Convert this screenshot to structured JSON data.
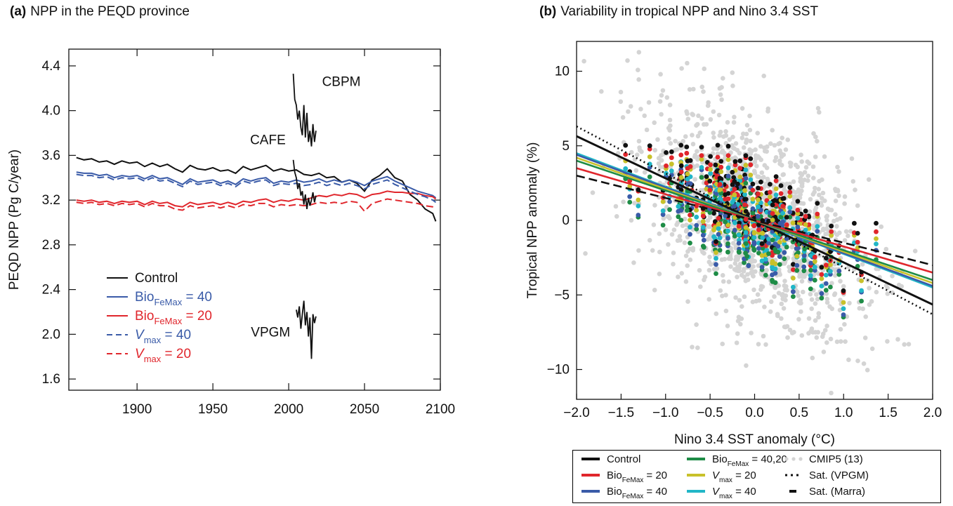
{
  "chart_data": [
    {
      "panel": "(a)",
      "type": "line",
      "title": "NPP in the PEQD province",
      "xlabel": "",
      "ylabel": "PEQD NPP (Pg C/year)",
      "xlim": [
        1855,
        2100
      ],
      "ylim": [
        1.5,
        4.55
      ],
      "xticks": [
        1900,
        1950,
        2000,
        2050,
        2100
      ],
      "yticks": [
        "1.6",
        "2.0",
        "2.4",
        "2.8",
        "3.2",
        "3.6",
        "4.0",
        "4.4"
      ],
      "xtick_labels": [
        "1900",
        "1950",
        "2000",
        "2050",
        "2100"
      ],
      "ytick_labels": [
        "1.6",
        "2.0",
        "2.4",
        "2.8",
        "3.2",
        "3.6",
        "4.0",
        "4.4"
      ],
      "colors": {
        "control": "#111111",
        "bio40": "#3a5ba8",
        "bio20": "#e0262c",
        "obs": "#111111"
      },
      "series": [
        {
          "key": "control",
          "style": "solid",
          "color": "#111111",
          "x": [
            1860,
            1865,
            1870,
            1875,
            1880,
            1885,
            1890,
            1895,
            1900,
            1905,
            1910,
            1915,
            1920,
            1925,
            1930,
            1935,
            1940,
            1945,
            1950,
            1955,
            1960,
            1965,
            1970,
            1975,
            1980,
            1985,
            1990,
            1995,
            2000,
            2005,
            2010,
            2015,
            2020,
            2025,
            2030,
            2035,
            2040,
            2045,
            2050,
            2055,
            2060,
            2065,
            2070,
            2075,
            2080,
            2085,
            2090,
            2095,
            2097
          ],
          "y": [
            3.58,
            3.56,
            3.57,
            3.54,
            3.55,
            3.52,
            3.55,
            3.53,
            3.54,
            3.5,
            3.53,
            3.5,
            3.52,
            3.48,
            3.45,
            3.51,
            3.48,
            3.47,
            3.49,
            3.46,
            3.47,
            3.44,
            3.5,
            3.47,
            3.49,
            3.51,
            3.46,
            3.48,
            3.46,
            3.47,
            3.43,
            3.42,
            3.44,
            3.4,
            3.41,
            3.36,
            3.38,
            3.35,
            3.28,
            3.38,
            3.42,
            3.48,
            3.4,
            3.37,
            3.25,
            3.2,
            3.12,
            3.08,
            3.01
          ]
        },
        {
          "key": "bio40",
          "style": "solid",
          "color": "#3a5ba8",
          "x": [
            1860,
            1865,
            1870,
            1875,
            1880,
            1885,
            1890,
            1895,
            1900,
            1905,
            1910,
            1915,
            1920,
            1925,
            1930,
            1935,
            1940,
            1945,
            1950,
            1955,
            1960,
            1965,
            1970,
            1975,
            1980,
            1985,
            1990,
            1995,
            2000,
            2005,
            2010,
            2015,
            2020,
            2025,
            2030,
            2035,
            2040,
            2045,
            2050,
            2055,
            2060,
            2065,
            2070,
            2075,
            2080,
            2085,
            2090,
            2095,
            2097
          ],
          "y": [
            3.45,
            3.44,
            3.44,
            3.42,
            3.43,
            3.4,
            3.42,
            3.41,
            3.42,
            3.39,
            3.42,
            3.39,
            3.4,
            3.37,
            3.34,
            3.39,
            3.36,
            3.37,
            3.38,
            3.35,
            3.37,
            3.34,
            3.39,
            3.37,
            3.39,
            3.4,
            3.35,
            3.37,
            3.36,
            3.38,
            3.36,
            3.37,
            3.39,
            3.36,
            3.38,
            3.36,
            3.38,
            3.36,
            3.33,
            3.37,
            3.39,
            3.41,
            3.37,
            3.34,
            3.31,
            3.28,
            3.26,
            3.24,
            3.22
          ]
        },
        {
          "key": "bio20",
          "style": "solid",
          "color": "#e0262c",
          "x": [
            1860,
            1865,
            1870,
            1875,
            1880,
            1885,
            1890,
            1895,
            1900,
            1905,
            1910,
            1915,
            1920,
            1925,
            1930,
            1935,
            1940,
            1945,
            1950,
            1955,
            1960,
            1965,
            1970,
            1975,
            1980,
            1985,
            1990,
            1995,
            2000,
            2005,
            2010,
            2015,
            2020,
            2025,
            2030,
            2035,
            2040,
            2045,
            2050,
            2055,
            2060,
            2065,
            2070,
            2075,
            2080,
            2085,
            2090,
            2095,
            2097
          ],
          "y": [
            3.2,
            3.19,
            3.2,
            3.18,
            3.19,
            3.17,
            3.19,
            3.18,
            3.19,
            3.16,
            3.19,
            3.17,
            3.18,
            3.15,
            3.14,
            3.18,
            3.16,
            3.17,
            3.18,
            3.16,
            3.18,
            3.16,
            3.19,
            3.18,
            3.2,
            3.21,
            3.18,
            3.2,
            3.19,
            3.21,
            3.2,
            3.22,
            3.24,
            3.23,
            3.25,
            3.24,
            3.26,
            3.25,
            3.22,
            3.25,
            3.26,
            3.28,
            3.27,
            3.27,
            3.26,
            3.26,
            3.24,
            3.23,
            3.21
          ]
        },
        {
          "key": "vmax40",
          "style": "dashed",
          "color": "#3a5ba8",
          "x": [
            1860,
            1865,
            1870,
            1875,
            1880,
            1885,
            1890,
            1895,
            1900,
            1905,
            1910,
            1915,
            1920,
            1925,
            1930,
            1935,
            1940,
            1945,
            1950,
            1955,
            1960,
            1965,
            1970,
            1975,
            1980,
            1985,
            1990,
            1995,
            2000,
            2005,
            2010,
            2015,
            2020,
            2025,
            2030,
            2035,
            2040,
            2045,
            2050,
            2055,
            2060,
            2065,
            2070,
            2075,
            2080,
            2085,
            2090,
            2095,
            2097
          ],
          "y": [
            3.43,
            3.42,
            3.42,
            3.4,
            3.41,
            3.38,
            3.4,
            3.39,
            3.4,
            3.37,
            3.4,
            3.37,
            3.38,
            3.35,
            3.32,
            3.37,
            3.34,
            3.35,
            3.36,
            3.33,
            3.35,
            3.32,
            3.37,
            3.35,
            3.37,
            3.38,
            3.33,
            3.35,
            3.34,
            3.35,
            3.33,
            3.34,
            3.36,
            3.33,
            3.35,
            3.33,
            3.35,
            3.33,
            3.3,
            3.34,
            3.36,
            3.38,
            3.34,
            3.31,
            3.28,
            3.25,
            3.23,
            3.2,
            3.18
          ]
        },
        {
          "key": "vmax20",
          "style": "dashed",
          "color": "#e0262c",
          "x": [
            1860,
            1865,
            1870,
            1875,
            1880,
            1885,
            1890,
            1895,
            1900,
            1905,
            1910,
            1915,
            1920,
            1925,
            1930,
            1935,
            1940,
            1945,
            1950,
            1955,
            1960,
            1965,
            1970,
            1975,
            1980,
            1985,
            1990,
            1995,
            2000,
            2005,
            2010,
            2015,
            2020,
            2025,
            2030,
            2035,
            2040,
            2045,
            2050,
            2055,
            2060,
            2065,
            2070,
            2075,
            2080,
            2085,
            2090,
            2095,
            2097
          ],
          "y": [
            3.18,
            3.17,
            3.18,
            3.16,
            3.17,
            3.15,
            3.17,
            3.16,
            3.17,
            3.14,
            3.17,
            3.15,
            3.15,
            3.12,
            3.11,
            3.15,
            3.13,
            3.14,
            3.15,
            3.13,
            3.15,
            3.13,
            3.16,
            3.15,
            3.17,
            3.17,
            3.14,
            3.16,
            3.15,
            3.16,
            3.15,
            3.16,
            3.18,
            3.17,
            3.18,
            3.17,
            3.19,
            3.18,
            3.1,
            3.17,
            3.19,
            3.21,
            3.2,
            3.19,
            3.18,
            3.17,
            3.15,
            3.14,
            3.13
          ]
        }
      ],
      "observations": [
        {
          "label": "CBPM",
          "x": [
            2003,
            2004,
            2005,
            2006,
            2007,
            2008,
            2009,
            2010,
            2011,
            2012,
            2013,
            2014,
            2015,
            2016,
            2017,
            2018
          ],
          "y": [
            4.33,
            4.1,
            4.05,
            3.92,
            4.0,
            3.85,
            3.78,
            4.05,
            3.76,
            3.98,
            3.72,
            3.82,
            3.68,
            3.88,
            3.72,
            3.82
          ]
        },
        {
          "label": "CAFE",
          "x": [
            2003,
            2004,
            2005,
            2006,
            2007,
            2008,
            2009,
            2010,
            2011,
            2012,
            2013,
            2014,
            2015,
            2016,
            2017,
            2018
          ],
          "y": [
            3.56,
            3.45,
            3.4,
            3.3,
            3.35,
            3.24,
            3.28,
            3.16,
            3.25,
            3.12,
            3.22,
            3.15,
            3.2,
            3.27,
            3.18,
            3.24
          ]
        },
        {
          "label": "VPGM",
          "x": [
            2005,
            2006,
            2007,
            2008,
            2009,
            2010,
            2011,
            2012,
            2013,
            2014,
            2015,
            2016,
            2017,
            2018
          ],
          "y": [
            2.22,
            2.15,
            2.25,
            2.05,
            2.18,
            2.3,
            2.08,
            2.2,
            1.98,
            2.15,
            1.78,
            2.18,
            2.1,
            2.16
          ]
        }
      ],
      "annotations": [
        "CBPM",
        "CAFE",
        "VPGM"
      ],
      "legend": [
        {
          "key": "control",
          "text": "Control",
          "style": "solid",
          "color": "#111111"
        },
        {
          "key": "bio40",
          "base": "Bio",
          "sub": "FeMax",
          "tail": " = 40",
          "style": "solid",
          "color": "#3a5ba8"
        },
        {
          "key": "bio20",
          "base": "Bio",
          "sub": "FeMax",
          "tail": " = 20",
          "style": "solid",
          "color": "#e0262c"
        },
        {
          "key": "vmax40",
          "base": "V",
          "sub": "max",
          "tail": " = 40",
          "style": "dashed",
          "color": "#3a5ba8"
        },
        {
          "key": "vmax20",
          "base": "V",
          "sub": "max",
          "tail": " = 20",
          "style": "dashed",
          "color": "#e0262c"
        }
      ],
      "legend_position": "lower-left",
      "grid": false
    },
    {
      "panel": "(b)",
      "type": "scatter",
      "title": "Variability in tropical NPP and Nino 3.4 SST",
      "xlabel": "Nino 3.4 SST anomaly (°C)",
      "ylabel": "Tropical NPP anomaly (%)",
      "xlim": [
        -2.0,
        2.0
      ],
      "ylim": [
        -12,
        12
      ],
      "xticks": [
        -2.0,
        -1.5,
        -1.0,
        -0.5,
        0.0,
        0.5,
        1.0,
        1.5,
        2.0
      ],
      "yticks": [
        -10,
        -5,
        0,
        5,
        10
      ],
      "xtick_labels": [
        "−2.0",
        "−1.5",
        "−1.0",
        "−0.5",
        "0.0",
        "0.5",
        "1.0",
        "1.5",
        "2.0"
      ],
      "ytick_labels": [
        "−10",
        "−5",
        "0",
        "5",
        "10"
      ],
      "colors": {
        "cmip5": "#d4d4d4",
        "control": "#111111",
        "bio20": "#e0262c",
        "bio40": "#3a5ba8",
        "bio4020": "#1e8c46",
        "vmax20": "#c8c12a",
        "vmax40": "#21b6c7",
        "sat": "#111111"
      },
      "regression_lines": [
        {
          "key": "sat_vpgm",
          "slope": -3.15,
          "intercept": 0.0,
          "style": "dotted",
          "color": "#111111"
        },
        {
          "key": "control",
          "slope": -2.82,
          "intercept": 0.0,
          "style": "solid",
          "color": "#111111"
        },
        {
          "key": "vmax40",
          "slope": -2.25,
          "intercept": 0.0,
          "style": "solid",
          "color": "#21b6c7"
        },
        {
          "key": "bio40",
          "slope": -2.2,
          "intercept": 0.0,
          "style": "solid",
          "color": "#3a5ba8"
        },
        {
          "key": "vmax20",
          "slope": -2.1,
          "intercept": 0.0,
          "style": "solid",
          "color": "#c8c12a"
        },
        {
          "key": "bio4020",
          "slope": -2.0,
          "intercept": 0.0,
          "style": "solid",
          "color": "#1e8c46"
        },
        {
          "key": "bio20",
          "slope": -1.75,
          "intercept": 0.0,
          "style": "solid",
          "color": "#e0262c"
        },
        {
          "key": "sat_marra",
          "slope": -1.5,
          "intercept": 0.0,
          "style": "dashed",
          "color": "#111111"
        }
      ],
      "scatter": {
        "cmip5_count": 1400,
        "cmip5_slope": -2.8,
        "cmip5_spread": 3.1,
        "model_count_each": 160,
        "model_spread": 1.25
      },
      "legend_position": "bottom-outside",
      "legend": [
        {
          "key": "control",
          "text": "Control",
          "marker": "solid",
          "color": "#111111"
        },
        {
          "key": "bio20",
          "base": "Bio",
          "sub": "FeMax",
          "tail": " = 20",
          "marker": "solid",
          "color": "#e0262c"
        },
        {
          "key": "bio40",
          "base": "Bio",
          "sub": "FeMax",
          "tail": " = 40",
          "marker": "solid",
          "color": "#3a5ba8"
        },
        {
          "key": "bio4020",
          "base": "Bio",
          "sub": "FeMax",
          "tail": " = 40,20",
          "marker": "solid",
          "color": "#1e8c46"
        },
        {
          "key": "vmax20",
          "base": "V",
          "sub": "max",
          "tail": " = 20",
          "marker": "solid",
          "color": "#c8c12a"
        },
        {
          "key": "vmax40",
          "base": "V",
          "sub": "max",
          "tail": " = 40",
          "marker": "solid",
          "color": "#21b6c7"
        },
        {
          "key": "cmip5",
          "text": "CMIP5 (13)",
          "marker": "dots",
          "color": "#d4d4d4"
        },
        {
          "key": "sat_vpgm",
          "text": "Sat. (VPGM)",
          "marker": "dotted",
          "color": "#111111"
        },
        {
          "key": "sat_marra",
          "text": "Sat. (Marra)",
          "marker": "dash",
          "color": "#111111"
        }
      ],
      "grid": false
    }
  ]
}
